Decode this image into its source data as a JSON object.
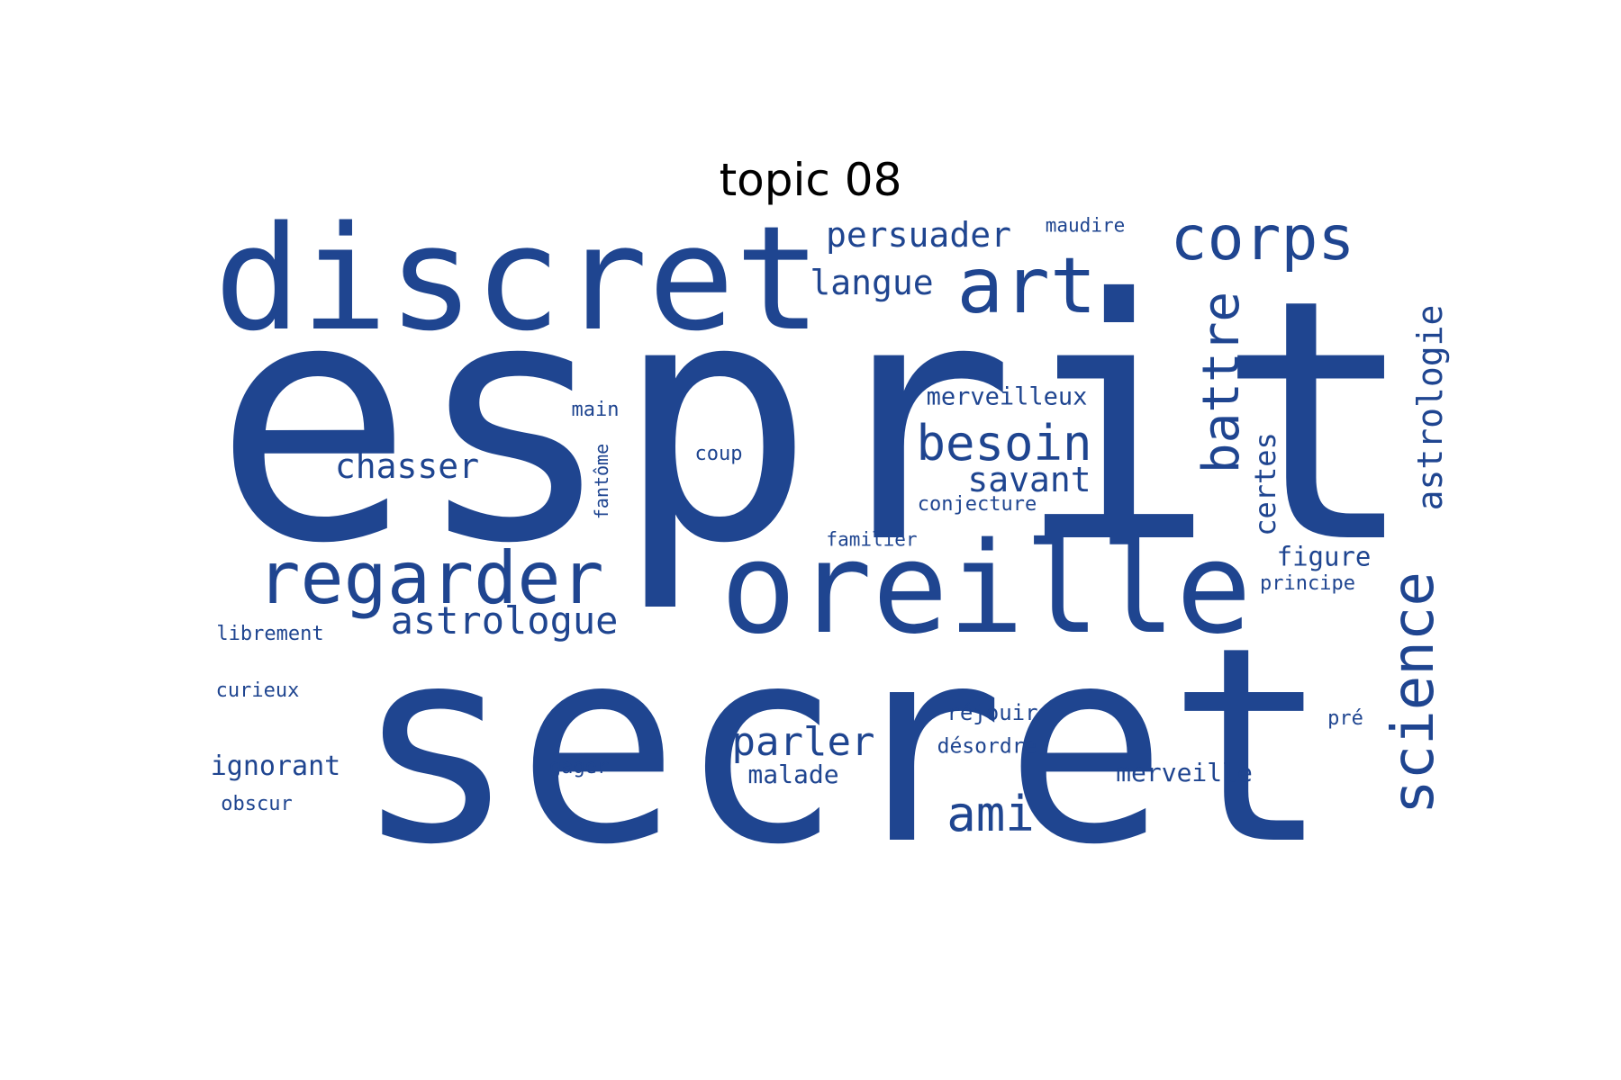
{
  "title": "topic 08",
  "word_color": "#1f4590",
  "words": {
    "esprit": "esprit",
    "secret": "secret",
    "discret": "discret",
    "oreille": "oreille",
    "regarder": "regarder",
    "art": "art",
    "corps": "corps",
    "science": "science",
    "battre": "battre",
    "astrologie": "astrologie",
    "besoin": "besoin",
    "astrologue": "astrologue",
    "chasser": "chasser",
    "persuader": "persuader",
    "langue": "langue",
    "savant": "savant",
    "parler": "parler",
    "ami": "ami",
    "certes": "certes",
    "merveilleux": "merveilleux",
    "figure": "figure",
    "ignorant": "ignorant",
    "merveille": "merveille",
    "malade": "malade",
    "main": "main",
    "coup": "coup",
    "fantome": "fantôme",
    "conjecture": "conjecture",
    "familier": "familier",
    "principe": "principe",
    "librement": "librement",
    "curieux": "curieux",
    "rejouir": "réjouir",
    "desordre": "désordre",
    "gager": "gager",
    "obscur": "obscur",
    "pre": "pré",
    "maudire": "maudire"
  }
}
